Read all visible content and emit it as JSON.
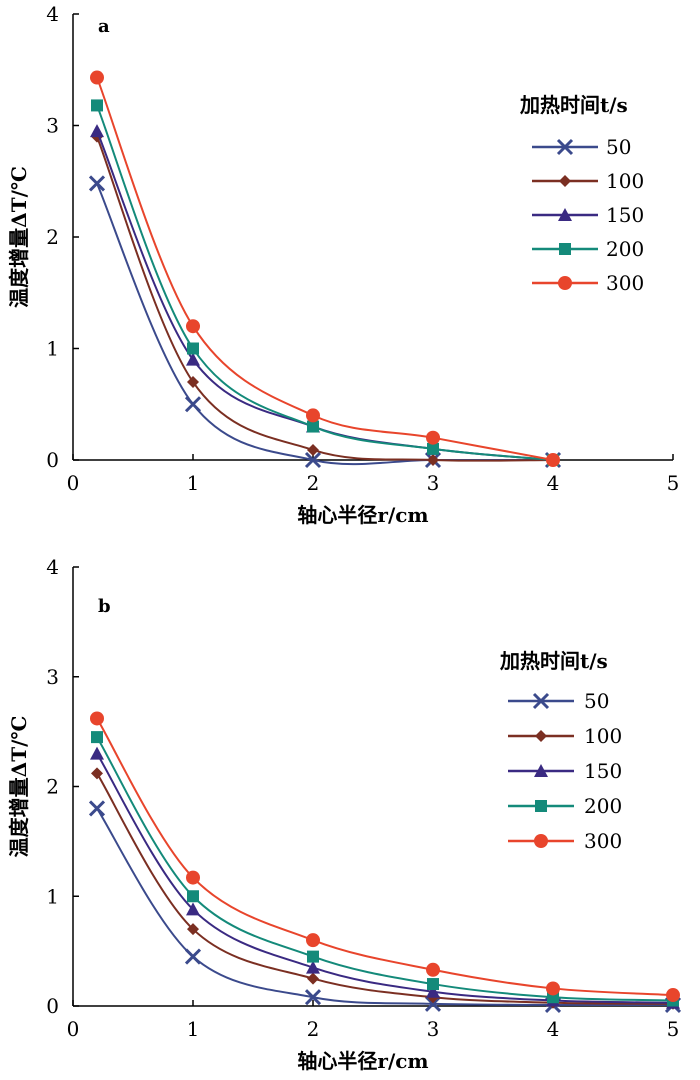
{
  "chart_data": [
    {
      "panel": "a",
      "type": "line",
      "xlabel": "轴心半径r/cm",
      "ylabel": "温度增量ΔT/℃",
      "xlim": [
        0,
        5
      ],
      "ylim": [
        0,
        4
      ],
      "xticks": [
        "0",
        "1",
        "2",
        "3",
        "4",
        "5"
      ],
      "yticks": [
        "0",
        "1",
        "2",
        "3",
        "4"
      ],
      "legend_title": "加热时间t/s",
      "legend_position": "right",
      "series": [
        {
          "name": "50",
          "color": "#3b4a8c",
          "marker": "x",
          "x": [
            0.2,
            1,
            2,
            3,
            4
          ],
          "values": [
            2.48,
            0.5,
            0.0,
            0.0,
            0.0
          ]
        },
        {
          "name": "100",
          "color": "#7b2f22",
          "marker": "diamond",
          "x": [
            0.2,
            1,
            2,
            3,
            4
          ],
          "values": [
            2.9,
            0.7,
            0.09,
            0.0,
            0.0
          ]
        },
        {
          "name": "150",
          "color": "#3a2a82",
          "marker": "triangle",
          "x": [
            0.2,
            1,
            2,
            3,
            4
          ],
          "values": [
            2.95,
            0.9,
            0.3,
            0.1,
            0.0
          ]
        },
        {
          "name": "200",
          "color": "#148a7a",
          "marker": "square",
          "x": [
            0.2,
            1,
            2,
            3,
            4
          ],
          "values": [
            3.18,
            1.0,
            0.3,
            0.1,
            0.0
          ]
        },
        {
          "name": "300",
          "color": "#e8452c",
          "marker": "circle",
          "x": [
            0.2,
            1,
            2,
            3,
            4
          ],
          "values": [
            3.43,
            1.2,
            0.4,
            0.2,
            0.0
          ]
        }
      ]
    },
    {
      "panel": "b",
      "type": "line",
      "xlabel": "轴心半径r/cm",
      "ylabel": "温度增量ΔT/℃",
      "xlim": [
        0,
        5
      ],
      "ylim": [
        0,
        4
      ],
      "xticks": [
        "0",
        "1",
        "2",
        "3",
        "4",
        "5"
      ],
      "yticks": [
        "0",
        "1",
        "2",
        "3",
        "4"
      ],
      "legend_title": "加热时间t/s",
      "legend_position": "right",
      "series": [
        {
          "name": "50",
          "color": "#3b4a8c",
          "marker": "x",
          "x": [
            0.2,
            1,
            2,
            3,
            4,
            5
          ],
          "values": [
            1.8,
            0.45,
            0.08,
            0.02,
            0.01,
            0.01
          ]
        },
        {
          "name": "100",
          "color": "#7b2f22",
          "marker": "diamond",
          "x": [
            0.2,
            1,
            2,
            3,
            4,
            5
          ],
          "values": [
            2.12,
            0.7,
            0.25,
            0.08,
            0.03,
            0.02
          ]
        },
        {
          "name": "150",
          "color": "#3a2a82",
          "marker": "triangle",
          "x": [
            0.2,
            1,
            2,
            3,
            4,
            5
          ],
          "values": [
            2.3,
            0.88,
            0.35,
            0.13,
            0.05,
            0.03
          ]
        },
        {
          "name": "200",
          "color": "#148a7a",
          "marker": "square",
          "x": [
            0.2,
            1,
            2,
            3,
            4,
            5
          ],
          "values": [
            2.45,
            1.0,
            0.45,
            0.2,
            0.08,
            0.05
          ]
        },
        {
          "name": "300",
          "color": "#e8452c",
          "marker": "circle",
          "x": [
            0.2,
            1,
            2,
            3,
            4,
            5
          ],
          "values": [
            2.62,
            1.17,
            0.6,
            0.33,
            0.16,
            0.1
          ]
        }
      ]
    }
  ]
}
